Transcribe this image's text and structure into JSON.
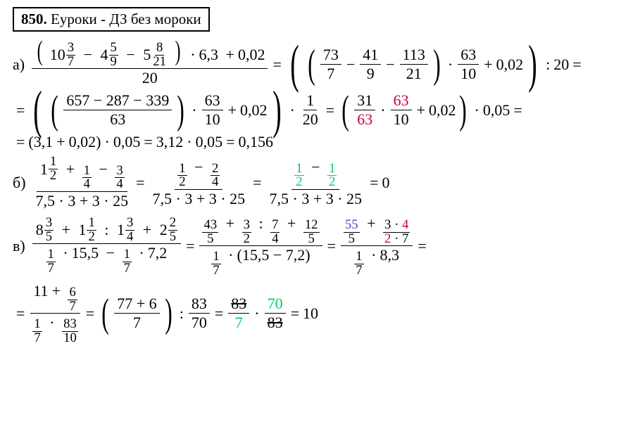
{
  "title": {
    "num": "850.",
    "text": "Еуроки - ДЗ без мороки"
  },
  "colors": {
    "red": "#cc0033",
    "green": "#00cc66",
    "purple": "#6633cc",
    "text": "#000000",
    "bg": "#ffffff"
  },
  "lineA": {
    "label": "а)",
    "lhs": {
      "num_m1_w": "10",
      "num_m1_n": "3",
      "num_m1_d": "7",
      "num_m2_w": "4",
      "num_m2_n": "5",
      "num_m2_d": "9",
      "num_m3_w": "5",
      "num_m3_n": "8",
      "num_m3_d": "21",
      "mult": "6,3",
      "add": "0,02",
      "den": "20"
    },
    "rhs1": {
      "f1n": "73",
      "f1d": "7",
      "f2n": "41",
      "f2d": "9",
      "f3n": "113",
      "f3d": "21",
      "mfn": "63",
      "mfd": "10",
      "add": "0,02",
      "div": "20"
    }
  },
  "lineA2": {
    "bigfrac_num": "657 − 287 − 339",
    "bigfrac_den": "63",
    "mfn": "63",
    "mfd": "10",
    "add": "0,02",
    "mf2n": "1",
    "mf2d": "20",
    "r_f1n": "31",
    "r_f1d": "63",
    "r_f2n": "63",
    "r_f2d": "10",
    "r_add": "0,02",
    "r_mult": "0,05"
  },
  "lineA3": {
    "p1": "3,1",
    "p2": "0,02",
    "m": "0,05",
    "p3": "3,12",
    "m2": "0,05",
    "res": "0,156"
  },
  "lineB": {
    "label": "б)",
    "lhs_num": {
      "w": "1",
      "f1n": "1",
      "f1d": "2",
      "f2n": "1",
      "f2d": "4",
      "f3n": "3",
      "f3d": "4"
    },
    "den_text": "7,5 · 3 + 3 · 25",
    "step2_num": {
      "f1n": "1",
      "f1d": "2",
      "f2n": "2",
      "f2d": "4"
    },
    "step3_num": {
      "f1n": "1",
      "f1d": "2",
      "f2n": "1",
      "f2d": "2"
    },
    "res": "0"
  },
  "lineC": {
    "label": "в)",
    "num": {
      "m1w": "8",
      "m1n": "3",
      "m1d": "5",
      "m2w": "1",
      "m2n": "1",
      "m2d": "2",
      "m3w": "1",
      "m3n": "3",
      "m3d": "4",
      "m4w": "2",
      "m4n": "2",
      "m4d": "5"
    },
    "den": {
      "f1n": "1",
      "f1d": "7",
      "v1": "15,5",
      "f2n": "1",
      "f2d": "7",
      "v2": "7,2"
    },
    "step2_num": {
      "f1n": "43",
      "f1d": "5",
      "f2n": "3",
      "f2d": "2",
      "f3n": "7",
      "f3d": "4",
      "f4n": "12",
      "f4d": "5"
    },
    "step2_den": {
      "f1n": "1",
      "f1d": "7",
      "paren": "15,5 − 7,2"
    },
    "step3_num": {
      "f1n": "55",
      "f1d": "5",
      "f2top": "3 · 4",
      "f2bot": "2 · 7"
    },
    "step3_den": {
      "f1n": "1",
      "f1d": "7",
      "v": "8,3"
    }
  },
  "lineC2": {
    "lhs_num_top_w": "11",
    "lhs_num_top_fn": "6",
    "lhs_num_top_fd": "7",
    "lhs_den_f1n": "1",
    "lhs_den_f1d": "7",
    "lhs_den_f2n": "83",
    "lhs_den_f2d": "10",
    "p_num": "77 + 6",
    "p_den": "7",
    "div_n": "83",
    "div_d": "70",
    "mf1n": "83",
    "mf1d": "7",
    "mf2n": "70",
    "mf2d": "83",
    "res": "10"
  }
}
